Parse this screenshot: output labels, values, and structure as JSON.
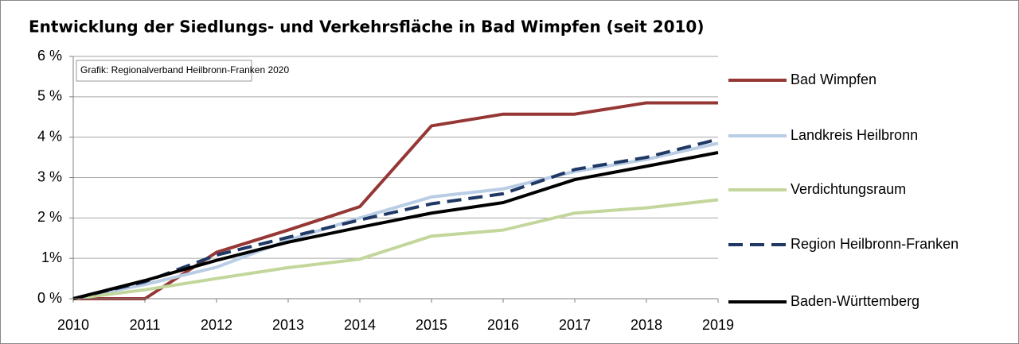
{
  "chart_data": {
    "type": "line",
    "title": "Entwicklung der Siedlungs- und Verkehrsfläche in Bad Wimpfen (seit 2010)",
    "annotation": "Grafik: Regionalverband Heilbronn-Franken 2020",
    "x": [
      2010,
      2011,
      2012,
      2013,
      2014,
      2015,
      2016,
      2017,
      2018,
      2019
    ],
    "xlim": [
      2010,
      2019
    ],
    "xticks": [
      2010,
      2011,
      2012,
      2013,
      2014,
      2015,
      2016,
      2017,
      2018,
      2019
    ],
    "ylim": [
      0,
      6
    ],
    "yticks": [
      {
        "value": 0,
        "label": "0 %"
      },
      {
        "value": 1,
        "label": "1%"
      },
      {
        "value": 2,
        "label": "2 %"
      },
      {
        "value": 3,
        "label": "3 %"
      },
      {
        "value": 4,
        "label": "4 %"
      },
      {
        "value": 5,
        "label": "5 %"
      },
      {
        "value": 6,
        "label": "6 %"
      }
    ],
    "grid": true,
    "legend": "right",
    "series": [
      {
        "name": "Bad Wimpfen",
        "color": "#953735",
        "values": [
          0,
          0,
          1.15,
          1.7,
          2.28,
          4.28,
          4.57,
          4.57,
          4.85,
          4.85
        ]
      },
      {
        "name": "Landkreis Heilbronn",
        "color": "#b9cde5",
        "values": [
          0,
          0.35,
          0.78,
          1.45,
          2.0,
          2.52,
          2.72,
          3.15,
          3.45,
          3.85
        ]
      },
      {
        "name": "Verdichtungsraum",
        "color": "#c3d69b",
        "values": [
          0,
          0.22,
          0.5,
          0.77,
          0.98,
          1.55,
          1.7,
          2.12,
          2.25,
          2.45
        ]
      },
      {
        "name": "Region Heilbronn-Franken",
        "color": "#1f3864",
        "dashed": true,
        "values": [
          0,
          0.42,
          1.08,
          1.52,
          1.95,
          2.35,
          2.6,
          3.2,
          3.5,
          3.95
        ]
      },
      {
        "name": "Baden-Württemberg",
        "color": "#000000",
        "values": [
          0,
          0.45,
          0.95,
          1.4,
          1.77,
          2.12,
          2.38,
          2.95,
          3.28,
          3.62
        ]
      }
    ]
  }
}
